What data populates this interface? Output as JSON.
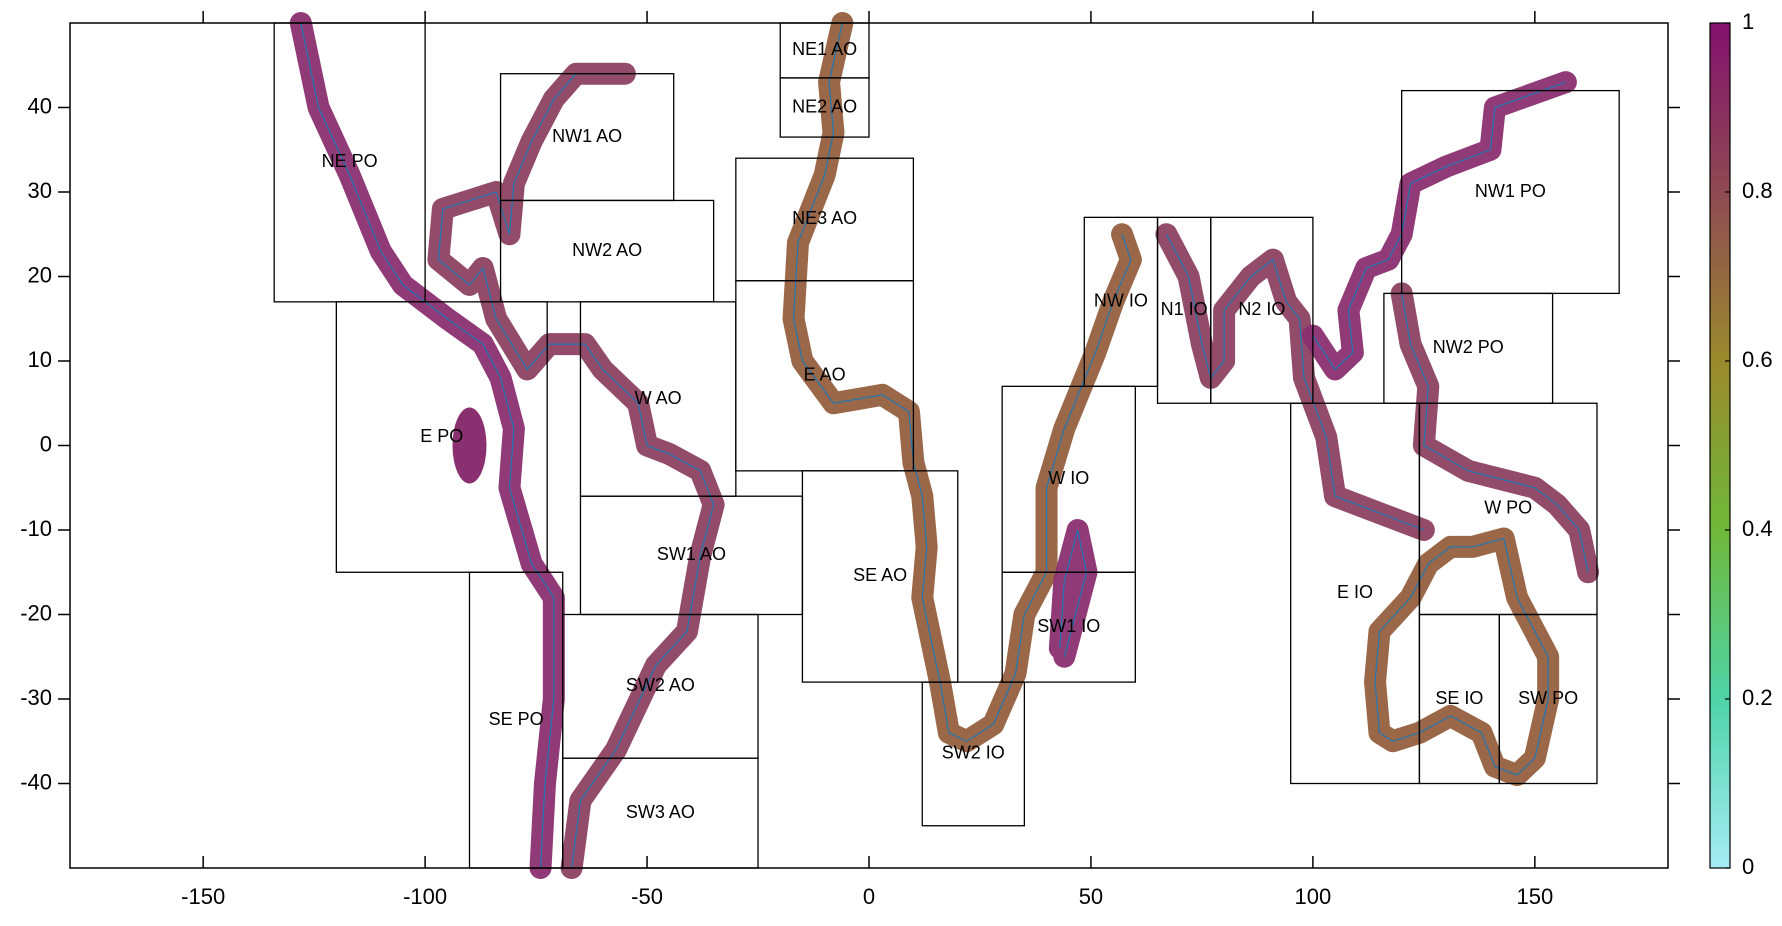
{
  "chart_data": {
    "type": "map",
    "xlim": [
      -180,
      180
    ],
    "ylim": [
      -50,
      50
    ],
    "xticks": [
      -150,
      -100,
      -50,
      0,
      50,
      100,
      150
    ],
    "yticks": [
      -40,
      -30,
      -20,
      -10,
      0,
      10,
      20,
      30,
      40
    ],
    "regions": [
      {
        "name": "NE PO",
        "lon": [
          -134,
          -100
        ],
        "lat": [
          17,
          50
        ]
      },
      {
        "name": "NW1 AO",
        "lon": [
          -83,
          -44
        ],
        "lat": [
          29,
          44
        ]
      },
      {
        "name": "NW2 AO",
        "lon": [
          -83,
          -35
        ],
        "lat": [
          17,
          29
        ]
      },
      {
        "name": "NE1 AO",
        "lon": [
          -20,
          0
        ],
        "lat": [
          43.5,
          50
        ]
      },
      {
        "name": "NE2 AO",
        "lon": [
          -20,
          0
        ],
        "lat": [
          36.5,
          43.5
        ]
      },
      {
        "name": "NE3 AO",
        "lon": [
          -30,
          10
        ],
        "lat": [
          19.5,
          34
        ]
      },
      {
        "name": "E AO",
        "lon": [
          -30,
          10
        ],
        "lat": [
          -3,
          19.5
        ]
      },
      {
        "name": "W AO",
        "lon": [
          -65,
          -30
        ],
        "lat": [
          -6,
          17
        ]
      },
      {
        "name": "SW1 AO",
        "lon": [
          -65,
          -15
        ],
        "lat": [
          -20,
          -6
        ]
      },
      {
        "name": "SE AO",
        "lon": [
          -15,
          20
        ],
        "lat": [
          -28,
          -3
        ]
      },
      {
        "name": "SW2 AO",
        "lon": [
          -69,
          -25
        ],
        "lat": [
          -37,
          -20
        ]
      },
      {
        "name": "SW3 AO",
        "lon": [
          -69,
          -25
        ],
        "lat": [
          -50,
          -37
        ]
      },
      {
        "name": "SE PO",
        "lon": [
          -90,
          -69
        ],
        "lat": [
          -50,
          -15
        ]
      },
      {
        "name": "E PO",
        "lon": [
          -120,
          -72.5
        ],
        "lat": [
          -15,
          17
        ]
      },
      {
        "name": "NW IO",
        "lon": [
          48.5,
          65
        ],
        "lat": [
          7,
          27
        ]
      },
      {
        "name": "N1 IO",
        "lon": [
          65,
          77
        ],
        "lat": [
          5,
          27
        ]
      },
      {
        "name": "N2 IO",
        "lon": [
          77,
          100
        ],
        "lat": [
          5,
          27
        ]
      },
      {
        "name": "W IO",
        "lon": [
          30,
          60
        ],
        "lat": [
          -15,
          7
        ]
      },
      {
        "name": "SW1 IO",
        "lon": [
          30,
          60
        ],
        "lat": [
          -28,
          -15
        ]
      },
      {
        "name": "SW2 IO",
        "lon": [
          12,
          35
        ],
        "lat": [
          -45,
          -28
        ]
      },
      {
        "name": "NW1 PO",
        "lon": [
          120,
          169
        ],
        "lat": [
          18,
          42
        ]
      },
      {
        "name": "NW2 PO",
        "lon": [
          116,
          154
        ],
        "lat": [
          5,
          18
        ]
      },
      {
        "name": "W PO",
        "lon": [
          124,
          164
        ],
        "lat": [
          -20,
          5
        ]
      },
      {
        "name": "E IO",
        "lon": [
          95,
          124
        ],
        "lat": [
          -40,
          5
        ]
      },
      {
        "name": "SE IO",
        "lon": [
          124,
          142
        ],
        "lat": [
          -40,
          -20
        ]
      },
      {
        "name": "SW PO",
        "lon": [
          142,
          164
        ],
        "lat": [
          -40,
          -20
        ]
      }
    ],
    "colorbar": {
      "lim": [
        0,
        1
      ],
      "ticks": [
        0,
        0.2,
        0.4,
        0.6,
        0.8,
        1
      ],
      "colors": [
        "#a6ecf5",
        "#4fd4a8",
        "#6fb83a",
        "#9a8a2c",
        "#8e4a52",
        "#84126e"
      ]
    }
  }
}
